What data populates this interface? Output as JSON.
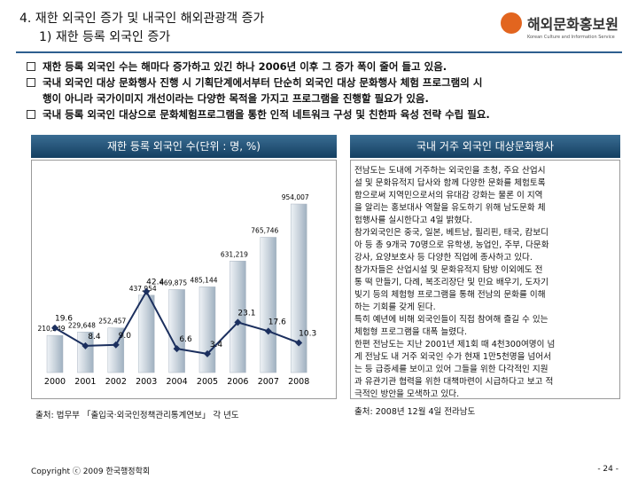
{
  "header": {
    "title": "4. 재한 외국인 증가 및 내국인 해외관광객 증가",
    "subtitle": "1) 재한 등록 외국인 증가",
    "logo": "해외문화홍보원",
    "logo_sub": "Korean Culture and Information Service"
  },
  "bullets": [
    [
      "재한 등록 외국인 수는 해마다 증가하고 있긴 하나 2006년 이후 그 증가 폭이 줄어 들고 있음."
    ],
    [
      "국내 외국인 대상 문화행사 진행 시 기획단계에서부터 단순히 외국인 대상 문화행사 체험 프로그램의 시",
      "행이 아니라 국가이미지 개선이라는 다양한 목적을 가지고 프로그램을 진행할 필요가 있음."
    ],
    [
      "국내 등록 외국인 대상으로 문화체험프로그램을 통한 인적 네트워크 구성 및 친한파 육성 전략 수립 필요."
    ]
  ],
  "chart_data": {
    "type": "bar_line",
    "title": "재한 등록 외국인 수(단위 : 명, %)",
    "categories": [
      "2000",
      "2001",
      "2002",
      "2003",
      "2004",
      "2005",
      "2006",
      "2007",
      "2008"
    ],
    "series": [
      {
        "type": "bar",
        "color": "#c9d3dc",
        "values": [
          210249,
          229648,
          252457,
          437954,
          469875,
          485144,
          631219,
          765746,
          954007
        ],
        "value_labels": [
          "210,249",
          "229,648",
          "252,457",
          "437,954",
          "469,875",
          "485,144",
          "631,219",
          "765,746",
          "954,007"
        ]
      },
      {
        "type": "line",
        "color": "#1b2f5e",
        "values": [
          19.6,
          8.4,
          9.0,
          42.4,
          6.6,
          3.4,
          23.1,
          17.6,
          10.3
        ],
        "value_labels": [
          "19.6",
          "8.4",
          "9.0",
          "42.4",
          "6.6",
          "3.4",
          "23.1",
          "17.6",
          "10.3"
        ]
      }
    ],
    "source": "출처: 법무부 「출입국·외국인정책관리통계연보」 각 년도"
  },
  "event": {
    "title": "국내 거주 외국인 대상문화행사",
    "lines": [
      "전남도는 도내에 거주하는 외국인을 초청, 주요 산업시",
      "설 및 문화유적지 답사와 함께 다양한 문화를 체험토록",
      "함으로써 지역민으로서의 유대감 강화는 물론 이 지역",
      "을 알리는 홍보대사 역할을 유도하기 위해 남도문화 체",
      "험행사를 실시한다고 4일 밝혔다.",
      "참가외국인은 중국, 일본, 베트남, 필리핀, 태국, 캄보디",
      "아 등 총 9개국 70명으로 유학생, 농업인, 주부, 다문화",
      "강사, 요양보호사 등 다양한 직업에 종사하고 있다.",
      "참가자들은 산업시설 및 문화유적지 탐방 이외에도 전",
      "통 떡 만들기, 다례, 복조리장단 및 민요 배우기, 도자기",
      "빚기 등의 체험형 프로그램을 통해 전남의 문화를 이해",
      "하는 기회를 갖게 된다.",
      "특히 예년에 비해 외국인들이 직접 참여해 즐길 수 있는",
      "체험형 프로그램을 대폭 늘렸다.",
      "한편 전남도는 지난 2001년 제1회 때 4천300여명이 넘",
      "게 전남도 내 거주 외국인 수가 현재 1만5천명을 넘어서",
      "는 등 급증세를 보이고 있어 그들을 위한 다각적인 지원",
      "과 유관기관 협력을 위한 대책마련이 시급하다고 보고 적",
      "극적인 방안을 모색하고 있다."
    ],
    "source": "출처: 2008년 12월 4일 전라남도"
  },
  "footer": {
    "copyright": "Copyright ⓒ 2009 한국행정학회",
    "page": "- 24 -"
  }
}
